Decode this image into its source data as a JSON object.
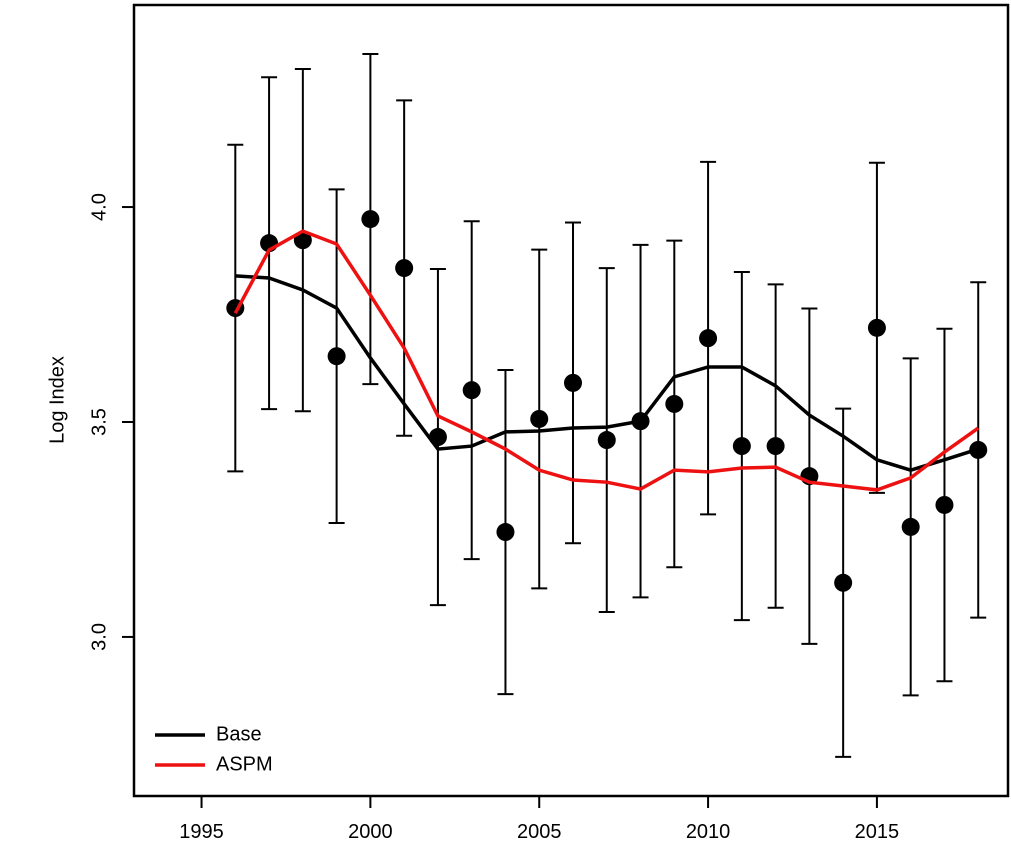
{
  "chart_data": {
    "type": "line",
    "y_label": "Log Index",
    "x": [
      1996,
      1997,
      1998,
      1999,
      2000,
      2001,
      2002,
      2003,
      2004,
      2005,
      2006,
      2007,
      2008,
      2009,
      2010,
      2011,
      2012,
      2013,
      2014,
      2015,
      2016,
      2017,
      2018
    ],
    "observed": {
      "color": "#000000",
      "values": [
        3.765,
        3.916,
        3.923,
        3.653,
        3.972,
        3.858,
        3.465,
        3.574,
        3.244,
        3.507,
        3.591,
        3.458,
        3.502,
        3.542,
        3.695,
        3.444,
        3.444,
        3.374,
        3.126,
        3.719,
        3.256,
        3.307,
        3.435
      ],
      "errors": [
        0.38,
        0.386,
        0.398,
        0.388,
        0.384,
        0.39,
        0.391,
        0.393,
        0.377,
        0.394,
        0.373,
        0.4,
        0.41,
        0.38,
        0.41,
        0.405,
        0.376,
        0.39,
        0.405,
        0.384,
        0.392,
        0.41,
        0.39
      ]
    },
    "series": [
      {
        "name": "Base",
        "color": "#000000",
        "values": [
          3.84,
          3.835,
          3.807,
          3.765,
          3.649,
          3.542,
          3.437,
          3.444,
          3.477,
          3.479,
          3.486,
          3.488,
          3.502,
          3.605,
          3.628,
          3.628,
          3.584,
          3.516,
          3.467,
          3.412,
          3.388,
          3.412,
          3.437
        ]
      },
      {
        "name": "ASPM",
        "color": "#ee1111",
        "values": [
          3.753,
          3.9,
          3.944,
          3.914,
          3.795,
          3.672,
          3.514,
          3.477,
          3.437,
          3.388,
          3.365,
          3.36,
          3.344,
          3.388,
          3.384,
          3.393,
          3.395,
          3.36,
          3.351,
          3.342,
          3.37,
          3.43,
          3.486
        ]
      }
    ],
    "xlim": [
      1993,
      2019
    ],
    "ylim": [
      2.63,
      4.47
    ],
    "xticks": [
      1995,
      2000,
      2005,
      2010,
      2015
    ],
    "yticks": [
      {
        "value": 3,
        "label": "3.0"
      },
      {
        "value": 3.5,
        "label": "3.5"
      },
      {
        "value": 4,
        "label": "4.0"
      }
    ],
    "legend": "bottom-left"
  }
}
